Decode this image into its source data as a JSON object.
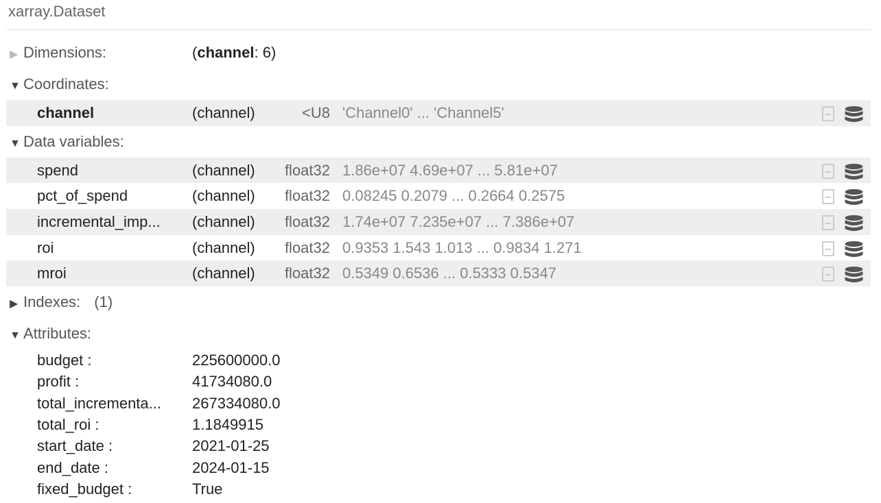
{
  "title": "xarray.Dataset",
  "dimensions": {
    "label": "Dimensions:",
    "dim_name": "channel",
    "dim_size": ": 6"
  },
  "coordinates": {
    "label": "Coordinates:",
    "items": [
      {
        "name": "channel",
        "dims": "(channel)",
        "dtype": "<U8",
        "preview": "'Channel0' ... 'Channel5'"
      }
    ]
  },
  "data_variables": {
    "label": "Data variables:",
    "items": [
      {
        "name": "spend",
        "dims": "(channel)",
        "dtype": "float32",
        "preview": "1.86e+07 4.69e+07 ... 5.81e+07"
      },
      {
        "name": "pct_of_spend",
        "dims": "(channel)",
        "dtype": "float32",
        "preview": "0.08245 0.2079 ... 0.2664 0.2575"
      },
      {
        "name": "incremental_imp...",
        "dims": "(channel)",
        "dtype": "float32",
        "preview": "1.74e+07 7.235e+07 ... 7.386e+07"
      },
      {
        "name": "roi",
        "dims": "(channel)",
        "dtype": "float32",
        "preview": "0.9353 1.543 1.013 ... 0.9834 1.271"
      },
      {
        "name": "mroi",
        "dims": "(channel)",
        "dtype": "float32",
        "preview": "0.5349 0.6536 ... 0.5333 0.5347"
      }
    ]
  },
  "indexes": {
    "label": "Indexes:",
    "count": "(1)"
  },
  "attributes": {
    "label": "Attributes:",
    "items": [
      {
        "key": "budget :",
        "value": "225600000.0"
      },
      {
        "key": "profit :",
        "value": "41734080.0"
      },
      {
        "key": "total_incrementa...",
        "value": "267334080.0"
      },
      {
        "key": "total_roi :",
        "value": "1.1849915"
      },
      {
        "key": "start_date :",
        "value": "2021-01-25"
      },
      {
        "key": "end_date :",
        "value": "2024-01-15"
      },
      {
        "key": "fixed_budget :",
        "value": "True"
      }
    ]
  },
  "icons": {
    "attrs": "file-text-icon",
    "data": "database-icon"
  },
  "colors": {
    "row_shade": "#eeeeee",
    "muted_text": "#888888"
  }
}
